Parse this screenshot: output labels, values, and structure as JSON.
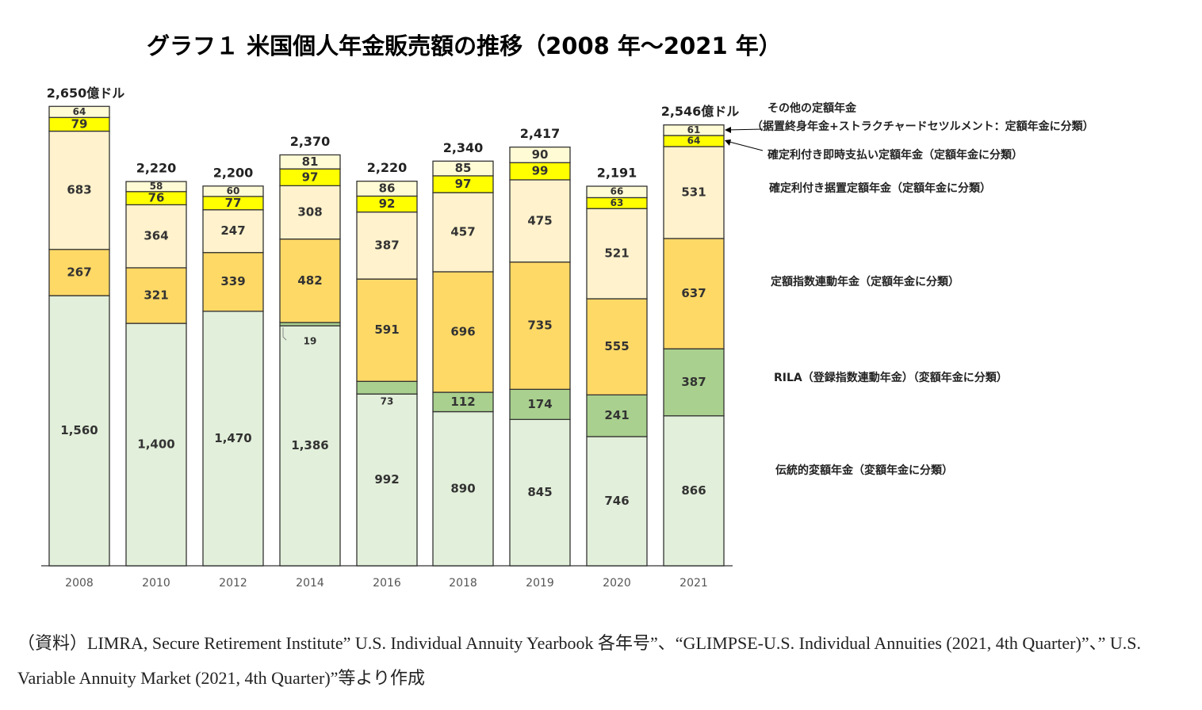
{
  "chart_data": {
    "type": "stacked_bar",
    "title": "グラフ１ 米国個人年金販売額の推移（2008 年～2021 年）",
    "categories": [
      "2008",
      "2010",
      "2012",
      "2014",
      "2016",
      "2018",
      "2019",
      "2020",
      "2021"
    ],
    "series": [
      {
        "name": "伝統的変額年金（変額年金に分類）",
        "color": "#e2efda",
        "values": [
          1560,
          1400,
          1470,
          1386,
          992,
          890,
          845,
          746,
          866
        ],
        "value_labels": [
          "1,560",
          "1,400",
          "1,470",
          "1,386",
          "992",
          "890",
          "845",
          "746",
          "866"
        ]
      },
      {
        "name": "RILA（登録指数連動年金）（変額年金に分類）",
        "color": "#a9d08e",
        "values": [
          null,
          null,
          null,
          19,
          73,
          112,
          174,
          241,
          387
        ]
      },
      {
        "name": "定額指数連動年金（定額年金に分類）",
        "color": "#ffd966",
        "values": [
          267,
          321,
          339,
          482,
          591,
          696,
          735,
          555,
          637
        ]
      },
      {
        "name": "確定利付き据置定額年金（定額年金に分類）",
        "color": "#fff2cc",
        "values": [
          683,
          364,
          247,
          308,
          387,
          457,
          475,
          521,
          531
        ]
      },
      {
        "name": "確定利付き即時支払い定額年金（定額年金に分類）",
        "color": "#ffff00",
        "values": [
          79,
          76,
          77,
          97,
          92,
          97,
          99,
          63,
          64
        ]
      },
      {
        "name": "その他の定額年金",
        "note": "（据置終身年金+ストラクチャードセツルメント：定額年金に分類）",
        "color": "#fffbd5",
        "values": [
          64,
          58,
          60,
          81,
          86,
          85,
          90,
          66,
          61
        ]
      }
    ],
    "totals": [
      {
        "value": 2650,
        "label": "2,650億ドル"
      },
      {
        "value": 2220,
        "label": "2,220"
      },
      {
        "value": 2200,
        "label": "2,200"
      },
      {
        "value": 2370,
        "label": "2,370"
      },
      {
        "value": 2220,
        "label": "2,220"
      },
      {
        "value": 2340,
        "label": "2,340"
      },
      {
        "value": 2417,
        "label": "2,417"
      },
      {
        "value": 2191,
        "label": "2,191"
      },
      {
        "value": 2546,
        "label": "2,546億ドル"
      }
    ],
    "ylim": [
      0,
      2700
    ],
    "source": "（資料）LIMRA, Secure Retirement Institute” U.S. Individual Annuity Yearbook 各年号”、“GLIMPSE-U.S. Individual Annuities (2021, 4th Quarter)”、” U.S. Variable Annuity Market (2021, 4th Quarter)”等より作成"
  }
}
